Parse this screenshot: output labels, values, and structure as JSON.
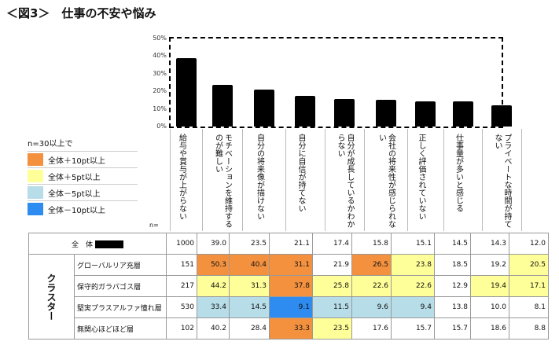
{
  "title": "＜図3＞　仕事の不安や悩み",
  "legend": {
    "heading": "n=30以上で",
    "items": [
      {
        "label": "全体＋10pt以上",
        "color": "#f4913f"
      },
      {
        "label": "全体＋5pt以上",
        "color": "#ffff99"
      },
      {
        "label": "全体－5pt以上",
        "color": "#b7dde8"
      },
      {
        "label": "全体－10pt以上",
        "color": "#2e8cf0"
      }
    ]
  },
  "n_label": "n=",
  "chart_data": {
    "type": "bar",
    "ylim": [
      0,
      50
    ],
    "yticks": [
      "0%",
      "10%",
      "20%",
      "30%",
      "40%",
      "50%"
    ],
    "categories": [
      "給与や賞与が上がらない",
      "モチベーションを維持するのが難しい",
      "自分の将来像が描けない",
      "自分に自信が持てない",
      "自分が成長しているかわからない",
      "会社の将来性が感じられない",
      "正しく評価されていない",
      "仕事量が多いと感じる",
      "プライベートな時間が持てない"
    ],
    "values": [
      39.0,
      23.5,
      21.1,
      17.4,
      15.8,
      15.1,
      14.5,
      14.3,
      12.0
    ]
  },
  "table": {
    "cluster_label": "クラスター",
    "total": {
      "label": "全　体",
      "n": "1000",
      "values": [
        "39.0",
        "23.5",
        "21.1",
        "17.4",
        "15.8",
        "15.1",
        "14.5",
        "14.3",
        "12.0"
      ]
    },
    "rows": [
      {
        "label": "グローバルリア充層",
        "n": "151",
        "values": [
          "50.3",
          "40.4",
          "31.1",
          "21.9",
          "26.5",
          "23.8",
          "18.5",
          "19.2",
          "20.5"
        ],
        "colors": [
          "#f4913f",
          "#f4913f",
          "#f4913f",
          "",
          "#f4913f",
          "#ffff99",
          "",
          "",
          "#ffff99"
        ]
      },
      {
        "label": "保守的ガラパゴス層",
        "n": "217",
        "values": [
          "44.2",
          "31.3",
          "37.8",
          "25.8",
          "22.6",
          "22.6",
          "12.9",
          "19.4",
          "17.1"
        ],
        "colors": [
          "#ffff99",
          "#ffff99",
          "#f4913f",
          "#ffff99",
          "#ffff99",
          "#ffff99",
          "",
          "#ffff99",
          "#ffff99"
        ]
      },
      {
        "label": "堅実プラスアルファ憧れ層",
        "n": "530",
        "values": [
          "33.4",
          "14.5",
          "9.1",
          "11.5",
          "9.6",
          "9.4",
          "13.8",
          "10.0",
          "8.1"
        ],
        "colors": [
          "#b7dde8",
          "#b7dde8",
          "#2e8cf0",
          "#b7dde8",
          "#b7dde8",
          "#b7dde8",
          "",
          "",
          ""
        ]
      },
      {
        "label": "無関心ほどほど層",
        "n": "102",
        "values": [
          "40.2",
          "28.4",
          "33.3",
          "23.5",
          "17.6",
          "15.7",
          "15.7",
          "18.6",
          "8.8"
        ],
        "colors": [
          "",
          "",
          "#f4913f",
          "#ffff99",
          "",
          "",
          "",
          "",
          ""
        ]
      }
    ]
  }
}
